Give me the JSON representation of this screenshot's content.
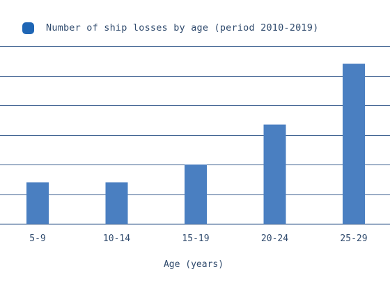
{
  "chart_data": {
    "type": "bar",
    "categories": [
      "5-9",
      "10-14",
      "15-19",
      "20-24",
      "25-29"
    ],
    "series": [
      {
        "name": "Number of ship losses by age (period 2010-2019)",
        "values": [
          1.4,
          1.4,
          2.0,
          3.35,
          5.4
        ]
      }
    ],
    "title": "",
    "xlabel": "Age (years)",
    "ylabel": "",
    "ylim": [
      0,
      6
    ],
    "grid": true,
    "legend_position": "top-left",
    "colors": {
      "bar": "#4a7fc1",
      "legend_swatch": "#1f66b5",
      "grid": "#3b5f8f",
      "text": "#2f4a6d"
    }
  }
}
